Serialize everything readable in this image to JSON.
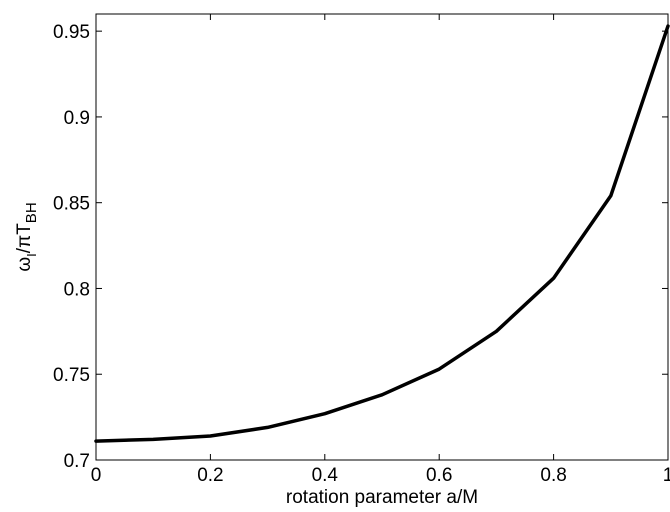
{
  "chart_data": {
    "type": "line",
    "title": "",
    "xlabel": "rotation parameter a/M",
    "ylabel": {
      "omega": "ω",
      "omega_sub": "I",
      "slash_pi_T": "/πT",
      "T_sub": "BH"
    },
    "xlim": [
      0,
      1
    ],
    "ylim": [
      0.7,
      0.96
    ],
    "grid": false,
    "legend": "none",
    "x_ticks": [
      "0",
      "0.2",
      "0.4",
      "0.6",
      "0.8",
      "1"
    ],
    "y_ticks": [
      "0.7",
      "0.75",
      "0.8",
      "0.85",
      "0.9",
      "0.95"
    ],
    "series": [
      {
        "color": "#000000",
        "x": [
          0,
          0.1,
          0.2,
          0.3,
          0.4,
          0.5,
          0.6,
          0.7,
          0.8,
          0.9,
          1.0
        ],
        "y": [
          0.711,
          0.712,
          0.714,
          0.719,
          0.727,
          0.738,
          0.753,
          0.775,
          0.806,
          0.854,
          0.953
        ]
      }
    ]
  }
}
